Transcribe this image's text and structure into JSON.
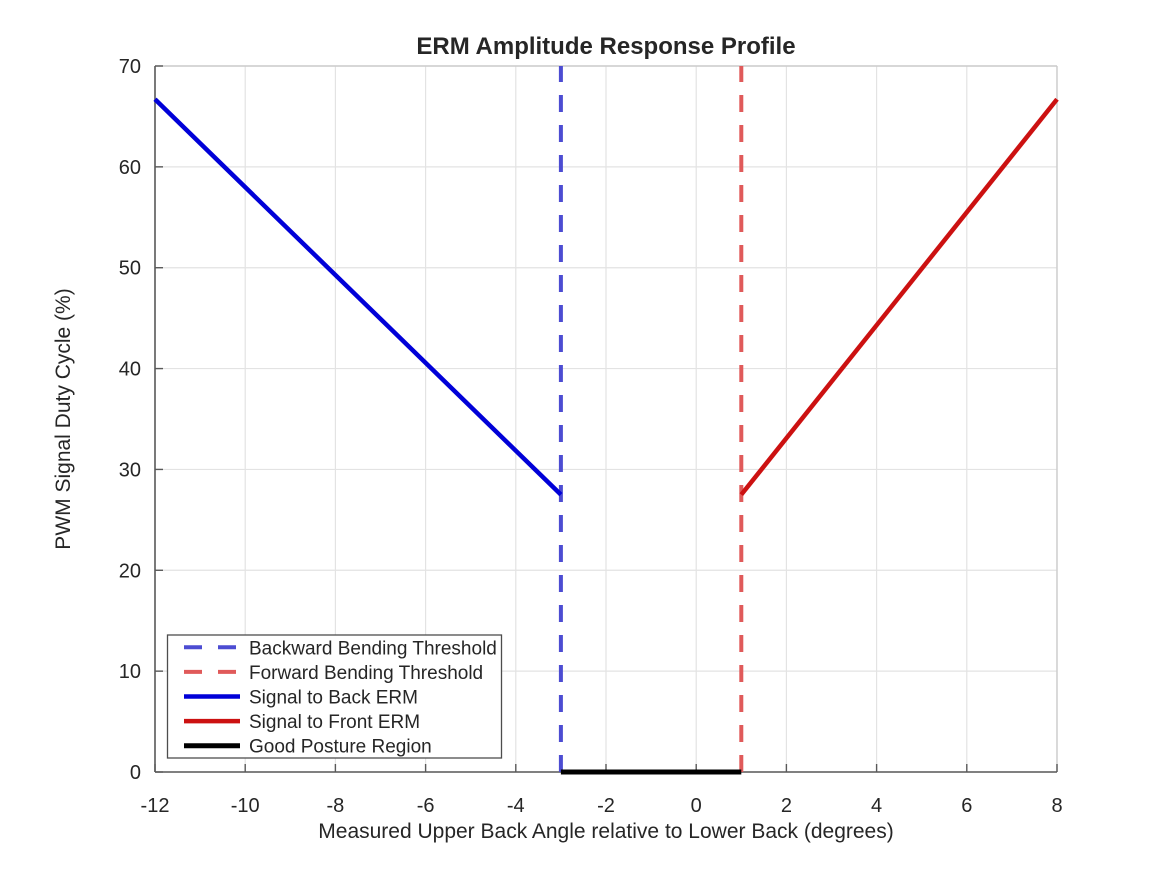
{
  "chart_data": {
    "type": "line",
    "title": "ERM Amplitude Response Profile",
    "xlabel": "Measured Upper Back Angle relative to Lower Back (degrees)",
    "ylabel": "PWM Signal Duty Cycle (%)",
    "xlim": [
      -12,
      8
    ],
    "ylim": [
      0,
      70
    ],
    "xticks": [
      -12,
      -10,
      -8,
      -6,
      -4,
      -2,
      0,
      2,
      4,
      6,
      8
    ],
    "yticks": [
      0,
      10,
      20,
      30,
      40,
      50,
      60,
      70
    ],
    "grid": true,
    "legend_position": "lower-left",
    "series": [
      {
        "id": "backward-bending-threshold",
        "name": "Backward Bending Threshold",
        "style": "dashed",
        "color": "#4c4cd2",
        "width": 4,
        "x": [
          -3,
          -3
        ],
        "y": [
          0,
          70
        ]
      },
      {
        "id": "forward-bending-threshold",
        "name": "Forward Bending Threshold",
        "style": "dashed",
        "color": "#e05a5a",
        "width": 4,
        "x": [
          1,
          1
        ],
        "y": [
          0,
          70
        ]
      },
      {
        "id": "signal-to-back-erm",
        "name": "Signal to Back ERM",
        "style": "solid",
        "color": "#0000d8",
        "width": 4.5,
        "x": [
          -12,
          -3
        ],
        "y": [
          66.7,
          27.5
        ]
      },
      {
        "id": "signal-to-front-erm",
        "name": "Signal to Front ERM",
        "style": "solid",
        "color": "#cc1111",
        "width": 4.5,
        "x": [
          1,
          8
        ],
        "y": [
          27.5,
          66.7
        ]
      },
      {
        "id": "good-posture-region",
        "name": "Good Posture Region",
        "style": "solid",
        "color": "#000000",
        "width": 5,
        "x": [
          -3,
          1
        ],
        "y": [
          0,
          0
        ]
      }
    ]
  },
  "colors": {
    "grid": "#e3e3e3",
    "axis": "#595959",
    "box": "#cccccc",
    "text": "#262626",
    "legend_border": "#4d4d4d",
    "background": "#ffffff"
  }
}
